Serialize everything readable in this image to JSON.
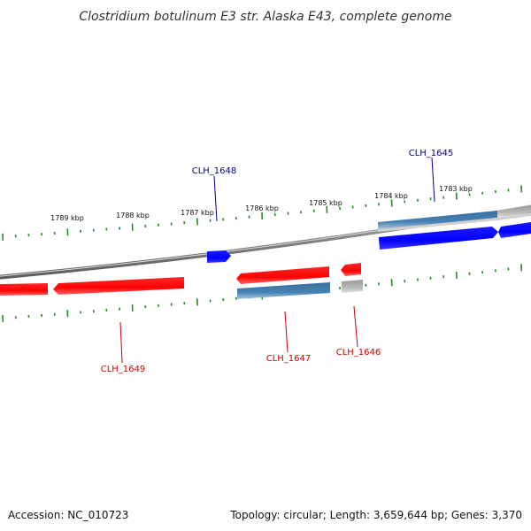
{
  "title": "Clostridium botulinum E3 str. Alaska E43, complete genome",
  "footer": {
    "accession": "Accession: NC_010723",
    "summary": "Topology: circular; Length: 3,659,644 bp; Genes: 3,370"
  },
  "ruler": {
    "labels": [
      "1789 kbp",
      "1788 kbp",
      "1787 kbp",
      "1786 kbp",
      "1785 kbp",
      "1784 kbp",
      "1783 kbp"
    ]
  },
  "genes": {
    "clh_1645": "CLH_1645",
    "clh_1646": "CLH_1646",
    "clh_1647": "CLH_1647",
    "clh_1648": "CLH_1648",
    "clh_1649": "CLH_1649"
  },
  "colors": {
    "forward_strand": "#0000ff",
    "reverse_strand": "#ff0000",
    "cds_forward": "#4682b4",
    "cds_reverse_gray": "#b0b0b0",
    "backbone": "#808080",
    "ticks": "#228b22",
    "label_forward": "#00008b",
    "label_reverse": "#cc0000"
  }
}
